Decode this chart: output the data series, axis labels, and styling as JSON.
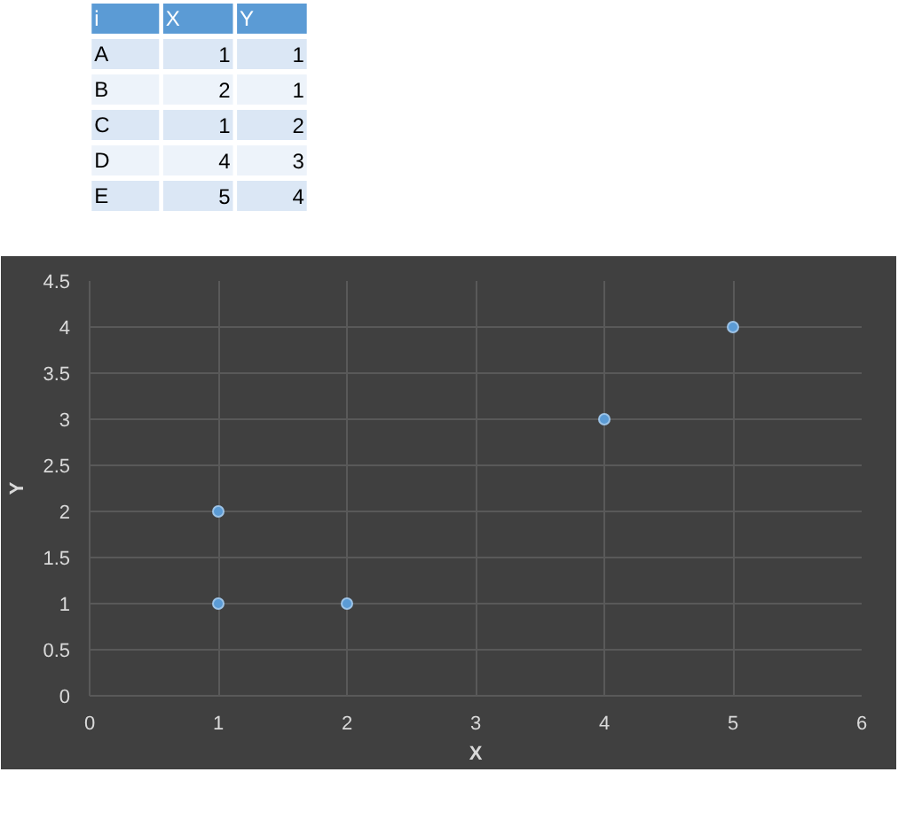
{
  "chart_data": [
    {
      "type": "other",
      "annotations": [
        "i",
        "X",
        "Y",
        "A",
        "1",
        "1",
        "B",
        "2",
        "1",
        "C",
        "1",
        "2",
        "D",
        "4",
        "3",
        "E",
        "5",
        "4"
      ]
    },
    {
      "type": "scatter",
      "x": [
        1,
        2,
        1,
        4,
        5
      ],
      "values": [
        1,
        1,
        2,
        3,
        4
      ],
      "color": "#5b9bd5",
      "xlabel": "X",
      "ylabel": "Y",
      "xlim": [
        0,
        6
      ],
      "xticks": [
        0,
        1,
        2,
        3,
        4,
        5,
        6
      ],
      "ylim": [
        0,
        4.5
      ],
      "yticks": [
        0,
        0.5,
        1,
        1.5,
        2,
        2.5,
        3,
        3.5,
        4,
        4.5
      ],
      "grid": true,
      "marker": "circle"
    }
  ]
}
